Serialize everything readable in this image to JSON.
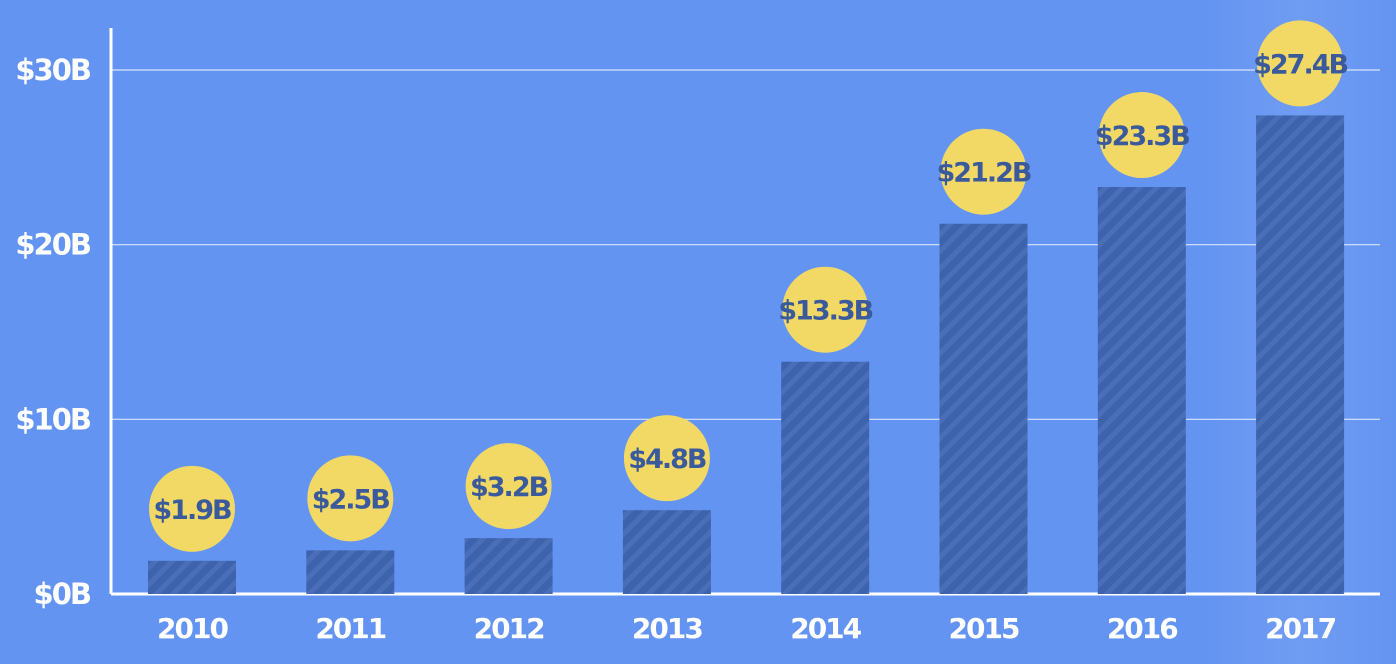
{
  "chart_data": {
    "type": "bar",
    "categories": [
      "2010",
      "2011",
      "2012",
      "2013",
      "2014",
      "2015",
      "2016",
      "2017"
    ],
    "values": [
      1.9,
      2.5,
      3.2,
      4.8,
      13.3,
      21.2,
      23.3,
      27.4
    ],
    "data_labels": [
      "$1.9B",
      "$2.5B",
      "$3.2B",
      "$4.8B",
      "$13.3B",
      "$21.2B",
      "$23.3B",
      "$27.4B"
    ],
    "yticks": [
      0,
      10,
      20,
      30
    ],
    "ytick_labels": [
      "$0B",
      "$10B",
      "$20B",
      "$30B"
    ],
    "ylim": [
      0,
      30
    ],
    "title": "",
    "xlabel": "",
    "ylabel": "",
    "grid": true,
    "colors": {
      "background": "#6494f1",
      "bar": "#3d63ad",
      "bar_stripe": "#5578c0",
      "label_circle": "#f2d966",
      "label_text": "#3a5a9c",
      "axis": "#ffffff"
    }
  }
}
